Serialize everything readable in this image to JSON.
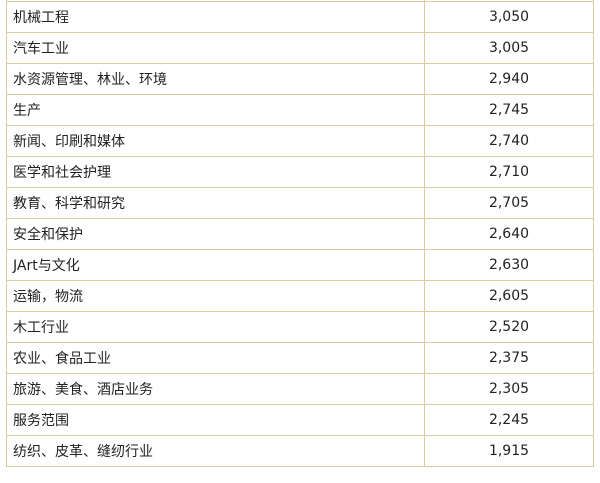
{
  "rows": [
    {
      "name": "",
      "value": ""
    },
    {
      "name": "机械工程",
      "value": "3,050"
    },
    {
      "name": "汽车工业",
      "value": "3,005"
    },
    {
      "name": "水资源管理、林业、环境",
      "value": "2,940"
    },
    {
      "name": "生产",
      "value": "2,745"
    },
    {
      "name": "新闻、印刷和媒体",
      "value": "2,740"
    },
    {
      "name": "医学和社会护理",
      "value": "2,710"
    },
    {
      "name": "教育、科学和研究",
      "value": "2,705"
    },
    {
      "name": "安全和保护",
      "value": "2,640"
    },
    {
      "name": "JArt与文化",
      "value": "2,630"
    },
    {
      "name": "运输，物流",
      "value": "2,605"
    },
    {
      "name": "木工行业",
      "value": "2,520"
    },
    {
      "name": "农业、食品工业",
      "value": "2,375"
    },
    {
      "name": "旅游、美食、酒店业务",
      "value": "2,305"
    },
    {
      "name": "服务范围",
      "value": "2,245"
    },
    {
      "name": "纺织、皮革、缝纫行业",
      "value": "1,915"
    }
  ]
}
